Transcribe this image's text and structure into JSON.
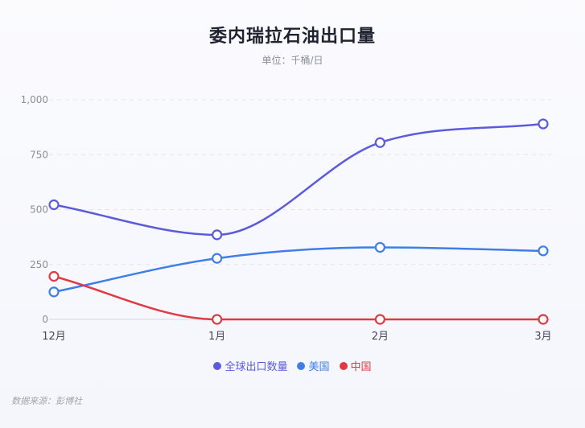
{
  "header": {
    "title": "委内瑞拉石油出口量",
    "subtitle": "单位：千桶/日"
  },
  "footer": {
    "source": "数据来源：彭博社"
  },
  "colors": {
    "total": "#5b5bdc",
    "usa": "#3f7ee8",
    "china": "#e03a44",
    "grid": "#e3e5ef",
    "axis": "#dcdeea"
  },
  "chart_data": {
    "type": "line",
    "title": "委内瑞拉石油出口量",
    "subtitle": "单位：千桶/日",
    "xlabel": "",
    "ylabel": "",
    "categories": [
      "12月",
      "1月",
      "2月",
      "3月"
    ],
    "ylim": [
      0,
      1000
    ],
    "yticks": [
      0,
      250,
      500,
      750,
      1000
    ],
    "ytick_labels": [
      "0",
      "250",
      "500",
      "750",
      "1,000"
    ],
    "grid": true,
    "legend_position": "bottom",
    "smooth": true,
    "series": [
      {
        "name": "全球出口数量",
        "color": "#5b5bdc",
        "values": [
          522,
          385,
          805,
          890
        ]
      },
      {
        "name": "美国",
        "color": "#3f7ee8",
        "values": [
          125,
          278,
          328,
          312
        ]
      },
      {
        "name": "中国",
        "color": "#e03a44",
        "values": [
          196,
          0,
          0,
          0
        ]
      }
    ]
  }
}
